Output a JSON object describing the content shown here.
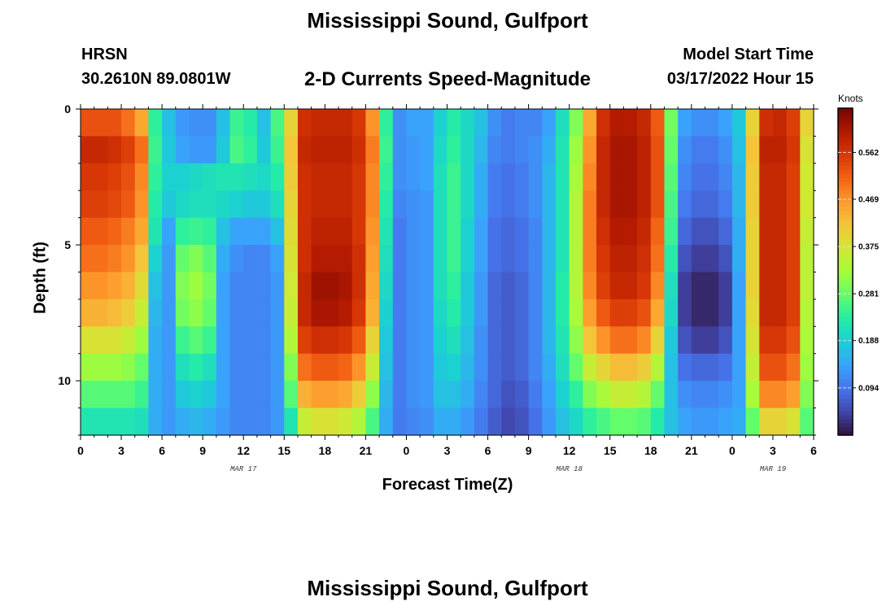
{
  "title": "Mississippi Sound, Gulfport",
  "title_repeat": "Mississippi Sound, Gulfport",
  "station": "HRSN",
  "coords": "30.2610N  89.0801W",
  "subtitle": "2-D Currents Speed-Magnitude",
  "model_start_label": "Model Start Time",
  "model_start_value": "03/17/2022 Hour 15",
  "chart_data": {
    "type": "heatmap",
    "xlabel": "Forecast Time(Z)",
    "ylabel": "Depth (ft)",
    "x_tick_labels": [
      "0",
      "3",
      "6",
      "9",
      "12",
      "15",
      "18",
      "21",
      "0",
      "3",
      "6",
      "9",
      "12",
      "15",
      "18",
      "21",
      "0",
      "3",
      "6"
    ],
    "date_labels": [
      {
        "text": "MAR 17",
        "at_hour": 12
      },
      {
        "text": "MAR 18",
        "at_hour": 36
      },
      {
        "text": "MAR 19",
        "at_hour": 51
      }
    ],
    "x_range_hours": [
      0,
      54
    ],
    "y_ticks": [
      0,
      5,
      10
    ],
    "y_range_ft": [
      0,
      12
    ],
    "colorbar": {
      "unit": "Knots",
      "ticks": [
        0.094,
        0.188,
        0.281,
        0.375,
        0.469,
        0.562
      ],
      "range": [
        0.0,
        0.65
      ],
      "colors": [
        "#30123b",
        "#4145ab",
        "#4675ed",
        "#39a2fc",
        "#1bcfd4",
        "#24eca6",
        "#61fc6c",
        "#a4fc3b",
        "#d1e834",
        "#f3c63a",
        "#fe9b2d",
        "#f36315",
        "#d93806",
        "#b11901",
        "#7a0402"
      ]
    },
    "columns_hours": [
      0,
      1,
      2,
      3,
      4,
      5,
      6,
      7,
      8,
      9,
      10,
      11,
      12,
      13,
      14,
      15,
      16,
      17,
      18,
      19,
      20,
      21,
      22,
      23,
      24,
      25,
      26,
      27,
      28,
      29,
      30,
      31,
      32,
      33,
      34,
      35,
      36,
      37,
      38,
      39,
      40,
      41,
      42,
      43,
      44,
      45,
      46,
      47,
      48,
      49,
      50,
      51,
      52,
      53
    ],
    "rows_depth_ft": [
      0,
      1,
      2,
      3,
      4,
      5,
      6,
      7,
      8,
      9,
      10,
      11
    ],
    "speed_knots": [
      [
        0.53,
        0.53,
        0.53,
        0.5,
        0.45,
        0.24,
        0.17,
        0.13,
        0.12,
        0.12,
        0.17,
        0.25,
        0.23,
        0.17,
        0.26,
        0.4,
        0.57,
        0.58,
        0.58,
        0.58,
        0.56,
        0.47,
        0.24,
        0.12,
        0.14,
        0.14,
        0.19,
        0.23,
        0.2,
        0.17,
        0.12,
        0.1,
        0.11,
        0.11,
        0.14,
        0.21,
        0.3,
        0.45,
        0.57,
        0.6,
        0.6,
        0.58,
        0.52,
        0.29,
        0.14,
        0.12,
        0.12,
        0.14,
        0.18,
        0.4,
        0.57,
        0.58,
        0.55,
        0.4
      ],
      [
        0.58,
        0.58,
        0.57,
        0.55,
        0.5,
        0.25,
        0.18,
        0.14,
        0.13,
        0.13,
        0.18,
        0.26,
        0.24,
        0.18,
        0.25,
        0.42,
        0.58,
        0.59,
        0.59,
        0.59,
        0.57,
        0.49,
        0.25,
        0.12,
        0.13,
        0.14,
        0.2,
        0.24,
        0.2,
        0.16,
        0.11,
        0.1,
        0.11,
        0.12,
        0.15,
        0.22,
        0.32,
        0.47,
        0.58,
        0.61,
        0.61,
        0.59,
        0.53,
        0.28,
        0.12,
        0.1,
        0.1,
        0.12,
        0.17,
        0.42,
        0.59,
        0.59,
        0.56,
        0.38
      ],
      [
        0.56,
        0.56,
        0.55,
        0.53,
        0.48,
        0.24,
        0.19,
        0.19,
        0.2,
        0.21,
        0.22,
        0.22,
        0.21,
        0.2,
        0.23,
        0.41,
        0.57,
        0.58,
        0.58,
        0.58,
        0.56,
        0.48,
        0.24,
        0.12,
        0.13,
        0.14,
        0.21,
        0.25,
        0.2,
        0.15,
        0.1,
        0.09,
        0.1,
        0.12,
        0.16,
        0.22,
        0.33,
        0.48,
        0.58,
        0.61,
        0.61,
        0.59,
        0.53,
        0.27,
        0.11,
        0.09,
        0.09,
        0.11,
        0.16,
        0.41,
        0.58,
        0.58,
        0.55,
        0.37
      ],
      [
        0.55,
        0.55,
        0.54,
        0.52,
        0.47,
        0.23,
        0.18,
        0.2,
        0.21,
        0.21,
        0.2,
        0.19,
        0.18,
        0.18,
        0.21,
        0.4,
        0.57,
        0.58,
        0.58,
        0.58,
        0.56,
        0.48,
        0.23,
        0.11,
        0.12,
        0.13,
        0.21,
        0.25,
        0.2,
        0.15,
        0.1,
        0.09,
        0.1,
        0.12,
        0.16,
        0.22,
        0.34,
        0.49,
        0.58,
        0.61,
        0.61,
        0.59,
        0.53,
        0.26,
        0.1,
        0.08,
        0.08,
        0.1,
        0.16,
        0.41,
        0.58,
        0.58,
        0.55,
        0.37
      ],
      [
        0.52,
        0.52,
        0.51,
        0.49,
        0.45,
        0.22,
        0.14,
        0.24,
        0.25,
        0.24,
        0.17,
        0.14,
        0.14,
        0.14,
        0.17,
        0.39,
        0.57,
        0.59,
        0.59,
        0.59,
        0.56,
        0.47,
        0.22,
        0.1,
        0.12,
        0.13,
        0.21,
        0.25,
        0.19,
        0.14,
        0.09,
        0.08,
        0.09,
        0.11,
        0.16,
        0.22,
        0.34,
        0.49,
        0.57,
        0.6,
        0.6,
        0.58,
        0.51,
        0.25,
        0.08,
        0.06,
        0.06,
        0.08,
        0.15,
        0.4,
        0.58,
        0.58,
        0.55,
        0.36
      ],
      [
        0.5,
        0.5,
        0.49,
        0.47,
        0.42,
        0.19,
        0.13,
        0.28,
        0.3,
        0.27,
        0.15,
        0.12,
        0.11,
        0.11,
        0.14,
        0.38,
        0.57,
        0.6,
        0.6,
        0.6,
        0.57,
        0.46,
        0.21,
        0.1,
        0.12,
        0.13,
        0.21,
        0.25,
        0.19,
        0.14,
        0.09,
        0.08,
        0.09,
        0.11,
        0.16,
        0.22,
        0.34,
        0.49,
        0.56,
        0.59,
        0.59,
        0.57,
        0.5,
        0.23,
        0.06,
        0.04,
        0.04,
        0.06,
        0.15,
        0.4,
        0.58,
        0.58,
        0.55,
        0.35
      ],
      [
        0.47,
        0.47,
        0.46,
        0.44,
        0.39,
        0.17,
        0.13,
        0.3,
        0.32,
        0.29,
        0.14,
        0.11,
        0.11,
        0.11,
        0.13,
        0.37,
        0.58,
        0.62,
        0.62,
        0.61,
        0.57,
        0.45,
        0.2,
        0.1,
        0.12,
        0.13,
        0.21,
        0.24,
        0.18,
        0.13,
        0.08,
        0.07,
        0.08,
        0.11,
        0.16,
        0.23,
        0.34,
        0.48,
        0.55,
        0.58,
        0.58,
        0.56,
        0.48,
        0.21,
        0.04,
        0.02,
        0.02,
        0.04,
        0.14,
        0.4,
        0.58,
        0.58,
        0.55,
        0.35
      ],
      [
        0.44,
        0.44,
        0.43,
        0.41,
        0.36,
        0.16,
        0.13,
        0.29,
        0.31,
        0.28,
        0.14,
        0.11,
        0.11,
        0.11,
        0.13,
        0.36,
        0.58,
        0.61,
        0.61,
        0.6,
        0.56,
        0.44,
        0.19,
        0.1,
        0.12,
        0.13,
        0.2,
        0.23,
        0.18,
        0.13,
        0.08,
        0.07,
        0.08,
        0.11,
        0.16,
        0.23,
        0.33,
        0.46,
        0.52,
        0.55,
        0.55,
        0.53,
        0.45,
        0.2,
        0.04,
        0.02,
        0.02,
        0.04,
        0.14,
        0.39,
        0.58,
        0.58,
        0.55,
        0.34
      ],
      [
        0.38,
        0.38,
        0.38,
        0.36,
        0.32,
        0.15,
        0.13,
        0.25,
        0.27,
        0.25,
        0.14,
        0.11,
        0.11,
        0.11,
        0.13,
        0.34,
        0.55,
        0.57,
        0.57,
        0.56,
        0.52,
        0.4,
        0.18,
        0.1,
        0.12,
        0.13,
        0.19,
        0.21,
        0.17,
        0.12,
        0.08,
        0.07,
        0.08,
        0.11,
        0.16,
        0.22,
        0.31,
        0.42,
        0.47,
        0.5,
        0.5,
        0.48,
        0.4,
        0.18,
        0.06,
        0.04,
        0.04,
        0.06,
        0.14,
        0.38,
        0.56,
        0.56,
        0.53,
        0.33
      ],
      [
        0.32,
        0.32,
        0.32,
        0.31,
        0.28,
        0.15,
        0.13,
        0.21,
        0.23,
        0.21,
        0.14,
        0.11,
        0.11,
        0.11,
        0.13,
        0.3,
        0.5,
        0.52,
        0.52,
        0.51,
        0.47,
        0.36,
        0.17,
        0.1,
        0.12,
        0.13,
        0.18,
        0.19,
        0.16,
        0.12,
        0.08,
        0.07,
        0.08,
        0.11,
        0.15,
        0.21,
        0.28,
        0.36,
        0.4,
        0.43,
        0.43,
        0.41,
        0.34,
        0.17,
        0.09,
        0.08,
        0.08,
        0.09,
        0.14,
        0.36,
        0.53,
        0.53,
        0.5,
        0.32
      ],
      [
        0.27,
        0.27,
        0.27,
        0.27,
        0.25,
        0.15,
        0.13,
        0.18,
        0.19,
        0.18,
        0.14,
        0.11,
        0.11,
        0.11,
        0.13,
        0.27,
        0.44,
        0.46,
        0.46,
        0.45,
        0.41,
        0.31,
        0.16,
        0.1,
        0.12,
        0.13,
        0.17,
        0.17,
        0.15,
        0.11,
        0.08,
        0.06,
        0.07,
        0.1,
        0.14,
        0.19,
        0.24,
        0.3,
        0.33,
        0.36,
        0.36,
        0.34,
        0.28,
        0.17,
        0.12,
        0.11,
        0.11,
        0.12,
        0.14,
        0.33,
        0.48,
        0.48,
        0.46,
        0.3
      ],
      [
        0.22,
        0.22,
        0.22,
        0.22,
        0.21,
        0.15,
        0.13,
        0.15,
        0.16,
        0.15,
        0.13,
        0.11,
        0.11,
        0.11,
        0.13,
        0.22,
        0.36,
        0.38,
        0.38,
        0.37,
        0.34,
        0.26,
        0.15,
        0.1,
        0.11,
        0.12,
        0.15,
        0.15,
        0.13,
        0.1,
        0.07,
        0.05,
        0.06,
        0.09,
        0.13,
        0.17,
        0.2,
        0.24,
        0.26,
        0.28,
        0.28,
        0.27,
        0.23,
        0.17,
        0.14,
        0.13,
        0.13,
        0.14,
        0.15,
        0.28,
        0.4,
        0.4,
        0.38,
        0.27
      ]
    ]
  }
}
